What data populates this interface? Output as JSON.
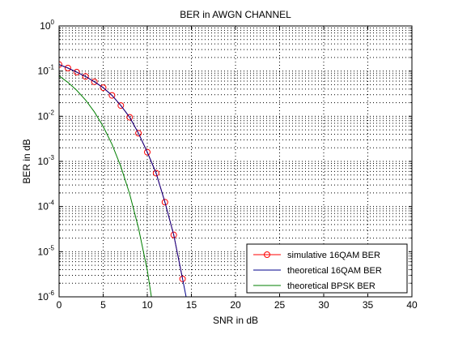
{
  "chart_data": {
    "type": "line",
    "title": "BER in AWGN CHANNEL",
    "xlabel": "SNR in dB",
    "ylabel": "BER in dB",
    "xlim": [
      0,
      40
    ],
    "ylim": [
      1e-06,
      1
    ],
    "yscale": "log",
    "grid": true,
    "grid_style": "dotted",
    "x_ticks": [
      0,
      5,
      10,
      15,
      20,
      25,
      30,
      35,
      40
    ],
    "y_ticks": [
      {
        "value": 1,
        "base": "10",
        "exp": "0"
      },
      {
        "value": 0.1,
        "base": "10",
        "exp": "-1"
      },
      {
        "value": 0.01,
        "base": "10",
        "exp": "-2"
      },
      {
        "value": 0.001,
        "base": "10",
        "exp": "-3"
      },
      {
        "value": 0.0001,
        "base": "10",
        "exp": "-4"
      },
      {
        "value": 1e-05,
        "base": "10",
        "exp": "-5"
      },
      {
        "value": 1e-06,
        "base": "10",
        "exp": "-6"
      }
    ],
    "legend_position": "bottom-right",
    "series": [
      {
        "name": "simulative 16QAM BER",
        "color": "#ff0000",
        "line": "solid",
        "marker": "circle",
        "x": [
          0,
          1,
          2,
          3,
          4,
          5,
          6,
          7,
          8,
          9,
          10,
          11,
          12,
          13,
          14
        ],
        "y": [
          0.14,
          0.117,
          0.095,
          0.076,
          0.058,
          0.043,
          0.029,
          0.0173,
          0.0095,
          0.0042,
          0.0016,
          0.00055,
          0.000125,
          2.35e-05,
          2.5e-06
        ]
      },
      {
        "name": "theoretical 16QAM BER",
        "color": "#00008b",
        "line": "solid",
        "marker": "none",
        "x": [
          0,
          1,
          2,
          3,
          4,
          5,
          6,
          7,
          8,
          9,
          10,
          11,
          12,
          13,
          14,
          14.5
        ],
        "y": [
          0.14,
          0.117,
          0.095,
          0.076,
          0.058,
          0.043,
          0.029,
          0.0173,
          0.0095,
          0.0042,
          0.0016,
          0.00055,
          0.000125,
          2.35e-05,
          2.5e-06,
          8e-07
        ]
      },
      {
        "name": "theoretical BPSK BER",
        "color": "#007f00",
        "line": "solid",
        "marker": "none",
        "x": [
          0,
          1,
          2,
          3,
          4,
          5,
          6,
          7,
          8,
          9,
          10,
          10.5
        ],
        "y": [
          0.0786,
          0.0563,
          0.0375,
          0.0229,
          0.0125,
          0.00595,
          0.00239,
          0.00077,
          0.00019,
          3.36e-05,
          3.9e-06,
          9e-07
        ]
      }
    ]
  }
}
